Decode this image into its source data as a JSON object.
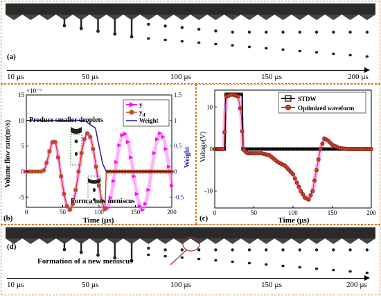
{
  "panel_a": {
    "label": "(a)",
    "time_ticks": [
      "10 µs",
      "50 µs",
      "100 µs",
      "150 µs",
      "200 µs"
    ]
  },
  "panel_d": {
    "label": "(d)",
    "annotation": "Formation of a new meniscus",
    "time_ticks": [
      "10 µs",
      "50 µs",
      "100 µs",
      "150 µs",
      "200 µs"
    ]
  },
  "chart_data": [
    {
      "type": "line",
      "panel_label": "(b)",
      "xlabel": "Time (µs)",
      "ylabel": "Volume flow rate(m³/s)",
      "y_exponent": "×10⁻⁹",
      "ylabel_right": "Weight",
      "xlim": [
        0,
        200
      ],
      "ylim": [
        -7,
        15
      ],
      "ylim_right": [
        -0.7,
        1.5
      ],
      "x_ticks": [
        0,
        50,
        100,
        150,
        200
      ],
      "y_ticks": [
        -5,
        0,
        5,
        10,
        15
      ],
      "y_ticks_right": [
        -0.5,
        0,
        0.5,
        1,
        1.5
      ],
      "annotations": [
        "Produce smaller droplets",
        "Form a new meniscus"
      ],
      "legend": [
        "y",
        "y_d",
        "Weight"
      ],
      "legend_sub": "d",
      "series": [
        {
          "name": "y",
          "color": "#ff00ff",
          "marker": "triangle-right",
          "x_start": 0,
          "x_end": 200
        },
        {
          "name": "y_d",
          "color": "#8a6a2a",
          "marker": "circle",
          "x_start": 0,
          "x_end": 200
        },
        {
          "name": "Weight",
          "color": "#1a1aa8",
          "axis": "right",
          "x": [
            0,
            80,
            95,
            100,
            105,
            110,
            200
          ],
          "values": [
            1,
            1,
            0.85,
            0.5,
            0.15,
            0,
            0
          ]
        }
      ]
    },
    {
      "type": "line",
      "panel_label": "(c)",
      "xlabel": "Time (µs)",
      "ylabel": "Voltage(V)",
      "xlim": [
        0,
        200
      ],
      "ylim": [
        -14,
        14
      ],
      "x_ticks": [
        0,
        50,
        100,
        150,
        200
      ],
      "y_ticks": [
        -10,
        0,
        10
      ],
      "legend": [
        "STDW",
        "Optimized waveform"
      ],
      "series": [
        {
          "name": "STDW",
          "color": "#000000",
          "marker": "square",
          "x": [
            0,
            13,
            14,
            35,
            36,
            200
          ],
          "values": [
            0,
            0,
            13,
            13,
            0,
            0
          ]
        },
        {
          "name": "Optimized waveform",
          "color": "#d04020",
          "marker": "circle",
          "x": [
            0,
            12,
            13,
            15,
            22,
            30,
            34,
            36,
            38,
            42,
            50,
            60,
            70,
            80,
            90,
            100,
            110,
            115,
            120,
            125,
            130,
            135,
            140,
            145,
            150,
            160,
            170,
            200
          ],
          "values": [
            0,
            0,
            8,
            12.5,
            13,
            12.5,
            8,
            0.5,
            -0.5,
            -1,
            -1,
            -1,
            -1.5,
            -3,
            -4,
            -6,
            -10,
            -11.5,
            -12,
            -10,
            -5,
            0,
            2.5,
            2,
            1,
            0.2,
            0,
            0
          ]
        }
      ]
    }
  ]
}
